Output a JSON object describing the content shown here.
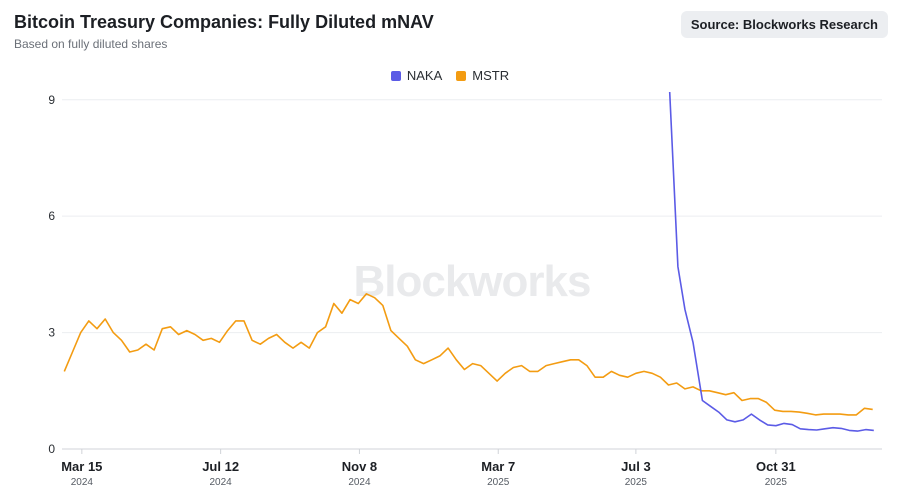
{
  "header": {
    "title": "Bitcoin Treasury Companies: Fully Diluted mNAV",
    "subtitle": "Based on fully diluted shares",
    "source": "Source: Blockworks Research"
  },
  "watermark": "Blockworks",
  "colors": {
    "naka": "#5b5be6",
    "mstr": "#f39c12",
    "grid": "#eceef1",
    "axis": "#d0d3d8"
  },
  "chart_data": {
    "type": "line",
    "title": "Bitcoin Treasury Companies: Fully Diluted mNAV",
    "subtitle": "Based on fully diluted shares",
    "xlabel": "",
    "ylabel": "",
    "ylim": [
      0,
      9.2
    ],
    "xlim": [
      "2024-02-27",
      "2026-01-30"
    ],
    "grid": true,
    "legend_position": "top-center",
    "y_ticks": [
      "0",
      "3",
      "6",
      "9"
    ],
    "x_ticks": [
      {
        "date": "2024-03-15",
        "label": "Mar 15",
        "year": "2024"
      },
      {
        "date": "2024-07-12",
        "label": "Jul 12",
        "year": "2024"
      },
      {
        "date": "2024-11-08",
        "label": "Nov 8",
        "year": "2024"
      },
      {
        "date": "2025-03-07",
        "label": "Mar 7",
        "year": "2025"
      },
      {
        "date": "2025-07-03",
        "label": "Jul 3",
        "year": "2025"
      },
      {
        "date": "2025-10-31",
        "label": "Oct 31",
        "year": "2025"
      }
    ],
    "series": [
      {
        "name": "NAKA",
        "color": "#5b5be6",
        "points": [
          [
            "2025-08-01",
            9.2
          ],
          [
            "2025-08-08",
            4.7
          ],
          [
            "2025-08-14",
            3.6
          ],
          [
            "2025-08-21",
            2.75
          ],
          [
            "2025-08-29",
            1.25
          ],
          [
            "2025-09-05",
            1.1
          ],
          [
            "2025-09-12",
            0.95
          ],
          [
            "2025-09-19",
            0.75
          ],
          [
            "2025-09-26",
            0.7
          ],
          [
            "2025-10-03",
            0.75
          ],
          [
            "2025-10-10",
            0.9
          ],
          [
            "2025-10-17",
            0.75
          ],
          [
            "2025-10-24",
            0.62
          ],
          [
            "2025-10-31",
            0.6
          ],
          [
            "2025-11-07",
            0.66
          ],
          [
            "2025-11-14",
            0.63
          ],
          [
            "2025-11-21",
            0.52
          ],
          [
            "2025-11-28",
            0.5
          ],
          [
            "2025-12-05",
            0.49
          ],
          [
            "2025-12-12",
            0.52
          ],
          [
            "2025-12-19",
            0.55
          ],
          [
            "2025-12-26",
            0.53
          ],
          [
            "2026-01-02",
            0.48
          ],
          [
            "2026-01-09",
            0.46
          ],
          [
            "2026-01-16",
            0.5
          ],
          [
            "2026-01-23",
            0.48
          ]
        ]
      },
      {
        "name": "MSTR",
        "color": "#f39c12",
        "points": [
          [
            "2024-02-29",
            2.0
          ],
          [
            "2024-03-07",
            2.5
          ],
          [
            "2024-03-14",
            3.0
          ],
          [
            "2024-03-21",
            3.3
          ],
          [
            "2024-03-28",
            3.1
          ],
          [
            "2024-04-04",
            3.35
          ],
          [
            "2024-04-11",
            3.0
          ],
          [
            "2024-04-18",
            2.8
          ],
          [
            "2024-04-25",
            2.5
          ],
          [
            "2024-05-02",
            2.55
          ],
          [
            "2024-05-09",
            2.7
          ],
          [
            "2024-05-16",
            2.55
          ],
          [
            "2024-05-23",
            3.1
          ],
          [
            "2024-05-30",
            3.15
          ],
          [
            "2024-06-06",
            2.95
          ],
          [
            "2024-06-13",
            3.05
          ],
          [
            "2024-06-20",
            2.95
          ],
          [
            "2024-06-27",
            2.8
          ],
          [
            "2024-07-04",
            2.85
          ],
          [
            "2024-07-11",
            2.75
          ],
          [
            "2024-07-18",
            3.05
          ],
          [
            "2024-07-25",
            3.3
          ],
          [
            "2024-08-01",
            3.3
          ],
          [
            "2024-08-08",
            2.8
          ],
          [
            "2024-08-15",
            2.7
          ],
          [
            "2024-08-22",
            2.85
          ],
          [
            "2024-08-29",
            2.95
          ],
          [
            "2024-09-05",
            2.75
          ],
          [
            "2024-09-12",
            2.6
          ],
          [
            "2024-09-19",
            2.75
          ],
          [
            "2024-09-26",
            2.6
          ],
          [
            "2024-10-03",
            3.0
          ],
          [
            "2024-10-10",
            3.15
          ],
          [
            "2024-10-17",
            3.75
          ],
          [
            "2024-10-24",
            3.5
          ],
          [
            "2024-10-31",
            3.85
          ],
          [
            "2024-11-07",
            3.75
          ],
          [
            "2024-11-14",
            4.0
          ],
          [
            "2024-11-21",
            3.9
          ],
          [
            "2024-11-28",
            3.7
          ],
          [
            "2024-12-05",
            3.05
          ],
          [
            "2024-12-12",
            2.85
          ],
          [
            "2024-12-19",
            2.65
          ],
          [
            "2024-12-26",
            2.3
          ],
          [
            "2025-01-02",
            2.2
          ],
          [
            "2025-01-09",
            2.3
          ],
          [
            "2025-01-16",
            2.4
          ],
          [
            "2025-01-23",
            2.6
          ],
          [
            "2025-01-30",
            2.3
          ],
          [
            "2025-02-06",
            2.05
          ],
          [
            "2025-02-13",
            2.2
          ],
          [
            "2025-02-20",
            2.15
          ],
          [
            "2025-02-27",
            1.95
          ],
          [
            "2025-03-06",
            1.75
          ],
          [
            "2025-03-13",
            1.95
          ],
          [
            "2025-03-20",
            2.1
          ],
          [
            "2025-03-27",
            2.15
          ],
          [
            "2025-04-03",
            2.0
          ],
          [
            "2025-04-10",
            2.0
          ],
          [
            "2025-04-17",
            2.15
          ],
          [
            "2025-04-24",
            2.2
          ],
          [
            "2025-05-01",
            2.25
          ],
          [
            "2025-05-08",
            2.3
          ],
          [
            "2025-05-15",
            2.3
          ],
          [
            "2025-05-22",
            2.15
          ],
          [
            "2025-05-29",
            1.85
          ],
          [
            "2025-06-05",
            1.85
          ],
          [
            "2025-06-12",
            2.0
          ],
          [
            "2025-06-19",
            1.9
          ],
          [
            "2025-06-26",
            1.85
          ],
          [
            "2025-07-03",
            1.95
          ],
          [
            "2025-07-10",
            2.0
          ],
          [
            "2025-07-17",
            1.95
          ],
          [
            "2025-07-24",
            1.85
          ],
          [
            "2025-07-31",
            1.65
          ],
          [
            "2025-08-07",
            1.7
          ],
          [
            "2025-08-14",
            1.55
          ],
          [
            "2025-08-21",
            1.6
          ],
          [
            "2025-08-28",
            1.5
          ],
          [
            "2025-09-04",
            1.5
          ],
          [
            "2025-09-11",
            1.45
          ],
          [
            "2025-09-18",
            1.4
          ],
          [
            "2025-09-25",
            1.45
          ],
          [
            "2025-10-02",
            1.25
          ],
          [
            "2025-10-09",
            1.3
          ],
          [
            "2025-10-16",
            1.3
          ],
          [
            "2025-10-23",
            1.2
          ],
          [
            "2025-10-30",
            1.0
          ],
          [
            "2025-11-06",
            0.97
          ],
          [
            "2025-11-13",
            0.97
          ],
          [
            "2025-11-20",
            0.95
          ],
          [
            "2025-11-27",
            0.92
          ],
          [
            "2025-12-04",
            0.88
          ],
          [
            "2025-12-11",
            0.9
          ],
          [
            "2025-12-18",
            0.9
          ],
          [
            "2025-12-25",
            0.9
          ],
          [
            "2026-01-01",
            0.88
          ],
          [
            "2026-01-08",
            0.88
          ],
          [
            "2026-01-15",
            1.05
          ],
          [
            "2026-01-22",
            1.02
          ]
        ]
      }
    ]
  }
}
